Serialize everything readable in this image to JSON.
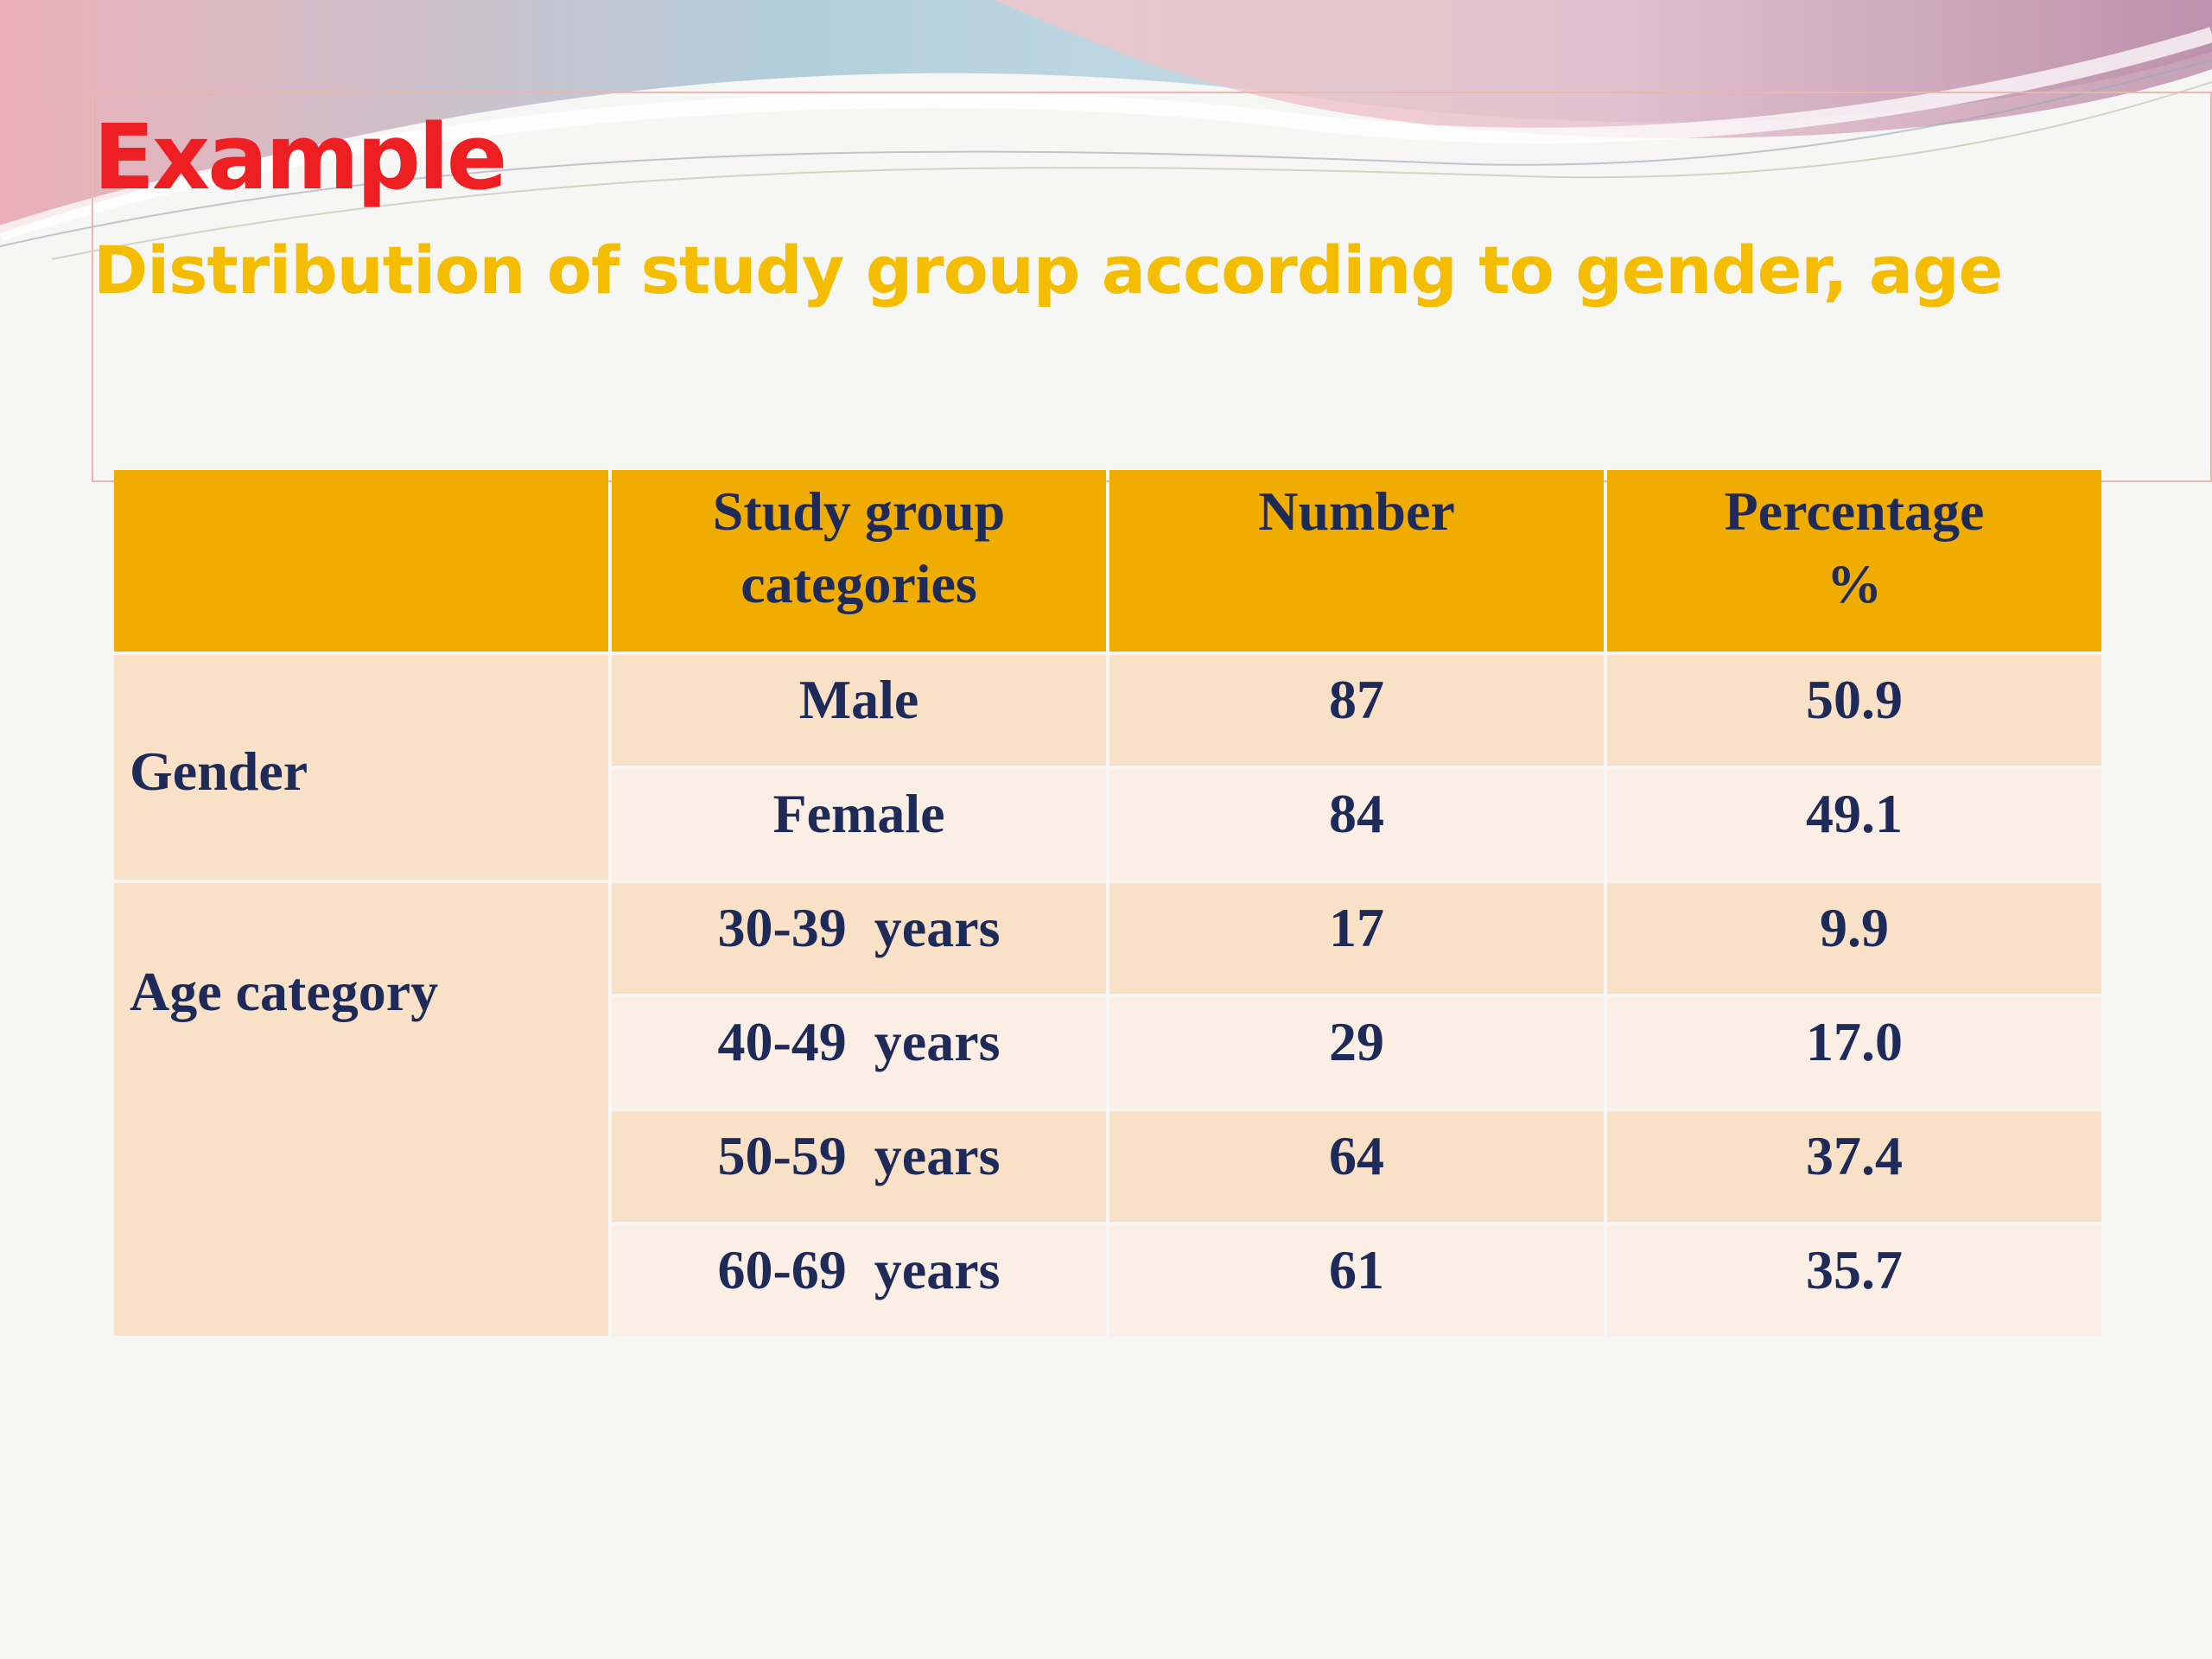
{
  "slide": {
    "title": "Example",
    "subtitle": "Distribution of study group according to gender, age"
  },
  "table": {
    "headers": [
      "",
      "Study group categories",
      "Number",
      "Percentage %"
    ],
    "header_lines": {
      "col1_line1": "Study group",
      "col1_line2": "categories",
      "col2": "Number",
      "col3_line1": "Percentage",
      "col3_line2": "%"
    },
    "groups": [
      {
        "label": "Gender",
        "rows": [
          {
            "category": "Male",
            "number": "87",
            "percentage": "50.9"
          },
          {
            "category": "Female",
            "number": "84",
            "percentage": "49.1"
          }
        ]
      },
      {
        "label": "Age category",
        "rows": [
          {
            "category": "30-39  years",
            "number": "17",
            "percentage": "9.9"
          },
          {
            "category": "40-49  years",
            "number": "29",
            "percentage": "17.0"
          },
          {
            "category": "50-59  years",
            "number": "64",
            "percentage": "37.4"
          },
          {
            "category": "60-69  years",
            "number": "61",
            "percentage": "35.7"
          }
        ]
      }
    ]
  },
  "colors": {
    "title": "#ee1f23",
    "subtitle": "#f5bd00",
    "header_bg": "#f0ad00",
    "row_shade": "#f9e1c8",
    "row_light": "#fbeee4",
    "text": "#1e2a57"
  }
}
